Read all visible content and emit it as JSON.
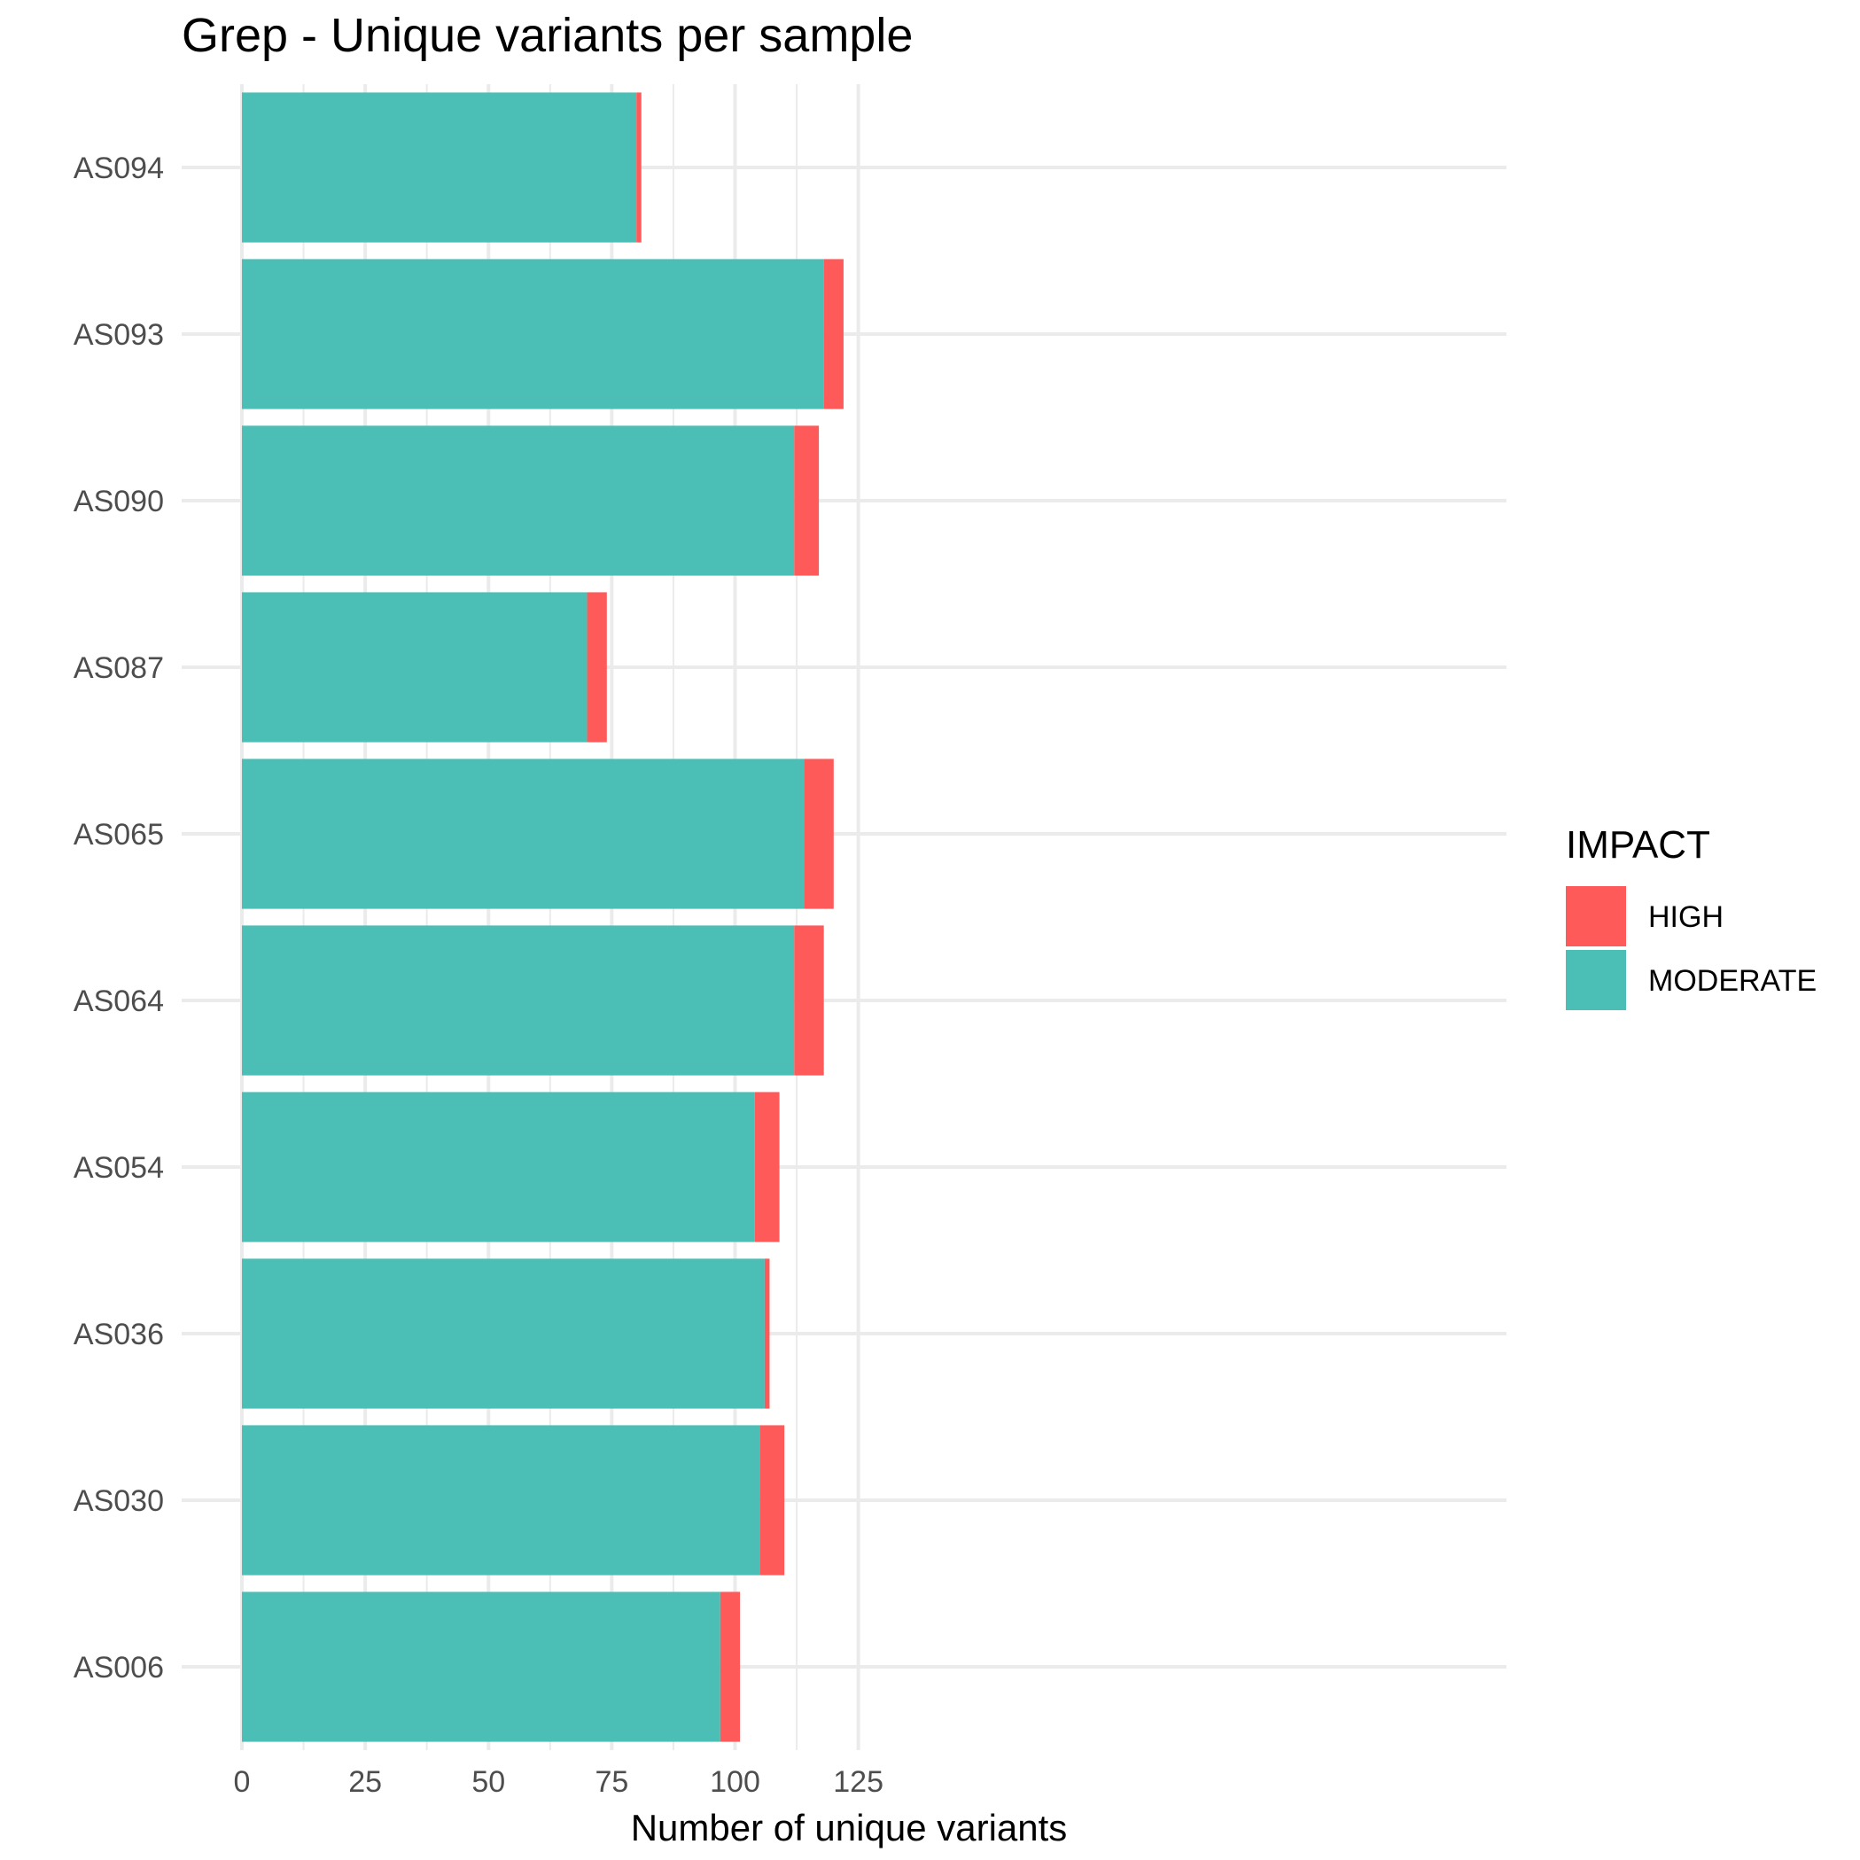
{
  "chart_data": {
    "type": "bar",
    "orientation": "horizontal",
    "stacked": true,
    "title": "Grep - Unique variants per sample",
    "xlabel": "Number of unique variants",
    "ylabel": "",
    "categories": [
      "AS094",
      "AS093",
      "AS090",
      "AS087",
      "AS065",
      "AS064",
      "AS054",
      "AS036",
      "AS030",
      "AS006"
    ],
    "series": [
      {
        "name": "MODERATE",
        "color": "#4bbeb5",
        "values": [
          80,
          118,
          112,
          70,
          114,
          112,
          104,
          106,
          105,
          97
        ]
      },
      {
        "name": "HIGH",
        "color": "#ff5a5a",
        "values": [
          1,
          4,
          5,
          4,
          6,
          6,
          5,
          1,
          5,
          4
        ]
      }
    ],
    "xlim": [
      0,
      128
    ],
    "xticks": [
      0,
      25,
      50,
      75,
      100,
      125
    ],
    "xtick_labels": [
      "0",
      "25",
      "50",
      "75",
      "100",
      "125"
    ],
    "grid": true,
    "legend": {
      "title": "IMPACT",
      "position": "right",
      "entries": [
        {
          "label": "HIGH",
          "color": "#ff5a5a"
        },
        {
          "label": "MODERATE",
          "color": "#4bbeb5"
        }
      ]
    }
  }
}
